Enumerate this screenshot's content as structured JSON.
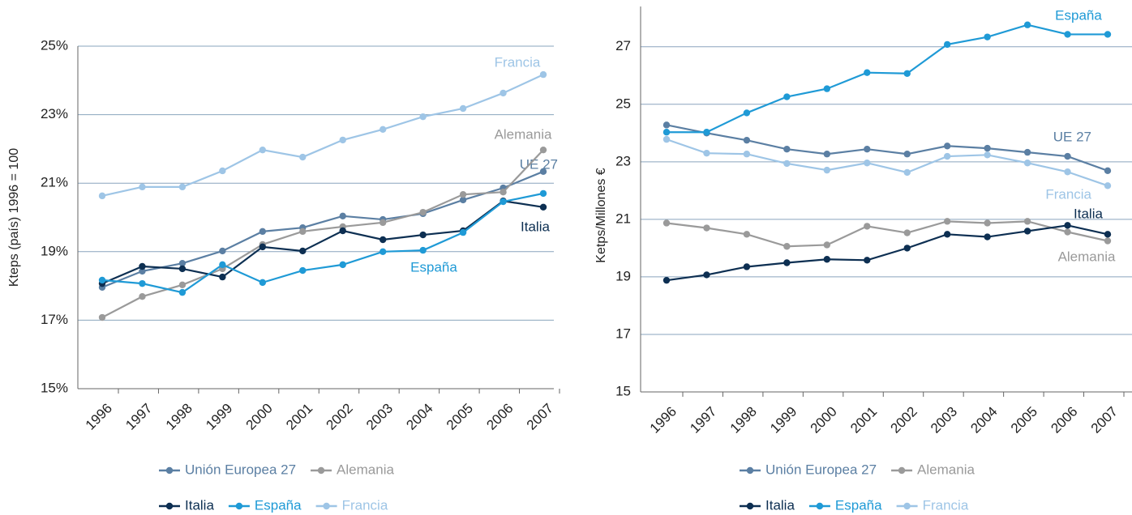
{
  "chart_data": [
    {
      "type": "line",
      "ylabel": "Kteps (país) 1996 = 100",
      "categories": [
        "1996",
        "1997",
        "1998",
        "1999",
        "2000",
        "2001",
        "2002",
        "2003",
        "2004",
        "2005",
        "2006",
        "2007"
      ],
      "ylim": [
        15,
        25
      ],
      "yticks": [
        {
          "value": 15,
          "label": "15%"
        },
        {
          "value": 17,
          "label": "17%"
        },
        {
          "value": 19,
          "label": "19%"
        },
        {
          "value": 21,
          "label": "21%"
        },
        {
          "value": 23,
          "label": "23%"
        },
        {
          "value": 25,
          "label": "25%"
        }
      ],
      "grid": true,
      "series": [
        {
          "name": "Unión Europea 27",
          "label": "UE 27",
          "color": "#5b7fa3",
          "values": [
            17.96,
            18.43,
            18.66,
            19.02,
            19.59,
            19.7,
            20.04,
            19.94,
            20.11,
            20.51,
            20.86,
            21.34
          ]
        },
        {
          "name": "Alemania",
          "label": "Alemania",
          "color": "#9a9a9a",
          "values": [
            17.08,
            17.69,
            18.03,
            18.5,
            19.21,
            19.59,
            19.73,
            19.85,
            20.15,
            20.67,
            20.74,
            21.97
          ]
        },
        {
          "name": "Italia",
          "label": "Italia",
          "color": "#0d2f52",
          "values": [
            18.07,
            18.57,
            18.5,
            18.26,
            19.14,
            19.02,
            19.61,
            19.35,
            19.49,
            19.61,
            20.48,
            20.3
          ]
        },
        {
          "name": "España",
          "label": "España",
          "color": "#1f9ad6",
          "values": [
            18.17,
            18.07,
            17.81,
            18.62,
            18.1,
            18.45,
            18.62,
            19.0,
            19.04,
            19.56,
            20.46,
            20.7
          ]
        },
        {
          "name": "Francia",
          "label": "Francia",
          "color": "#9ec5e6",
          "values": [
            20.63,
            20.89,
            20.89,
            21.36,
            21.97,
            21.76,
            22.26,
            22.57,
            22.94,
            23.18,
            23.63,
            24.17
          ]
        }
      ]
    },
    {
      "type": "line",
      "ylabel": "Ketps/Millones €",
      "categories": [
        "1996",
        "1997",
        "1998",
        "1999",
        "2000",
        "2001",
        "2002",
        "2003",
        "2004",
        "2005",
        "2006",
        "2007"
      ],
      "ylim": [
        15,
        28.4
      ],
      "yticks": [
        15,
        17,
        19,
        21,
        23,
        25,
        27
      ],
      "grid": true,
      "series": [
        {
          "name": "Unión Europea 27",
          "label": "UE 27",
          "color": "#5b7fa3",
          "values": [
            24.28,
            24.0,
            23.75,
            23.44,
            23.27,
            23.44,
            23.27,
            23.55,
            23.47,
            23.33,
            23.19,
            22.69
          ]
        },
        {
          "name": "Alemania",
          "label": "Alemania",
          "color": "#9a9a9a",
          "values": [
            20.87,
            20.7,
            20.48,
            20.06,
            20.11,
            20.76,
            20.53,
            20.93,
            20.87,
            20.93,
            20.56,
            20.25
          ]
        },
        {
          "name": "Italia",
          "label": "Italia",
          "color": "#0d2f52",
          "values": [
            18.88,
            19.07,
            19.35,
            19.49,
            19.61,
            19.58,
            20.0,
            20.48,
            20.39,
            20.59,
            20.79,
            20.48
          ]
        },
        {
          "name": "España",
          "label": "España",
          "color": "#1f9ad6",
          "values": [
            24.03,
            24.03,
            24.7,
            25.26,
            25.54,
            26.1,
            26.07,
            27.08,
            27.34,
            27.76,
            27.43,
            27.43
          ]
        },
        {
          "name": "Francia",
          "label": "Francia",
          "color": "#9ec5e6",
          "values": [
            23.78,
            23.3,
            23.27,
            22.94,
            22.71,
            22.96,
            22.63,
            23.19,
            23.24,
            22.96,
            22.65,
            22.17
          ]
        }
      ]
    }
  ]
}
